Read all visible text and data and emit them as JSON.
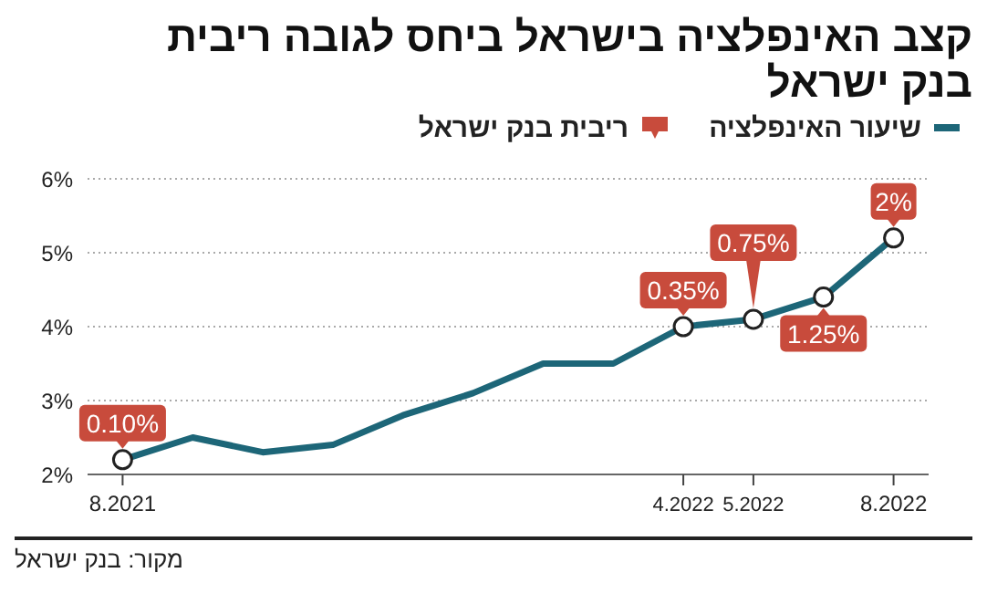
{
  "chart_data": {
    "type": "line",
    "title": "קצב האינפלציה בישראל ביחס לגובה ריבית בנק ישראל",
    "categories": [
      "8.2021",
      null,
      null,
      null,
      null,
      null,
      null,
      null,
      "4.2022",
      "5.2022",
      null,
      "8.2022"
    ],
    "series": [
      {
        "name": "שיעור האינפלציה",
        "color": "#1d6678",
        "values": [
          2.2,
          2.5,
          2.3,
          2.4,
          2.8,
          3.1,
          3.5,
          3.5,
          4.0,
          4.1,
          4.4,
          5.2
        ]
      }
    ],
    "ylim": [
      2,
      6
    ],
    "yticks": [
      {
        "value": 2,
        "label": "2%"
      },
      {
        "value": 3,
        "label": "3%"
      },
      {
        "value": 4,
        "label": "4%"
      },
      {
        "value": 5,
        "label": "5%"
      },
      {
        "value": 6,
        "label": "6%"
      }
    ],
    "grid": "y",
    "legend": "top right",
    "annotations": [
      "ריבית בנק ישראל",
      "מקור: בנק ישראל",
      {
        "text": "0.10%",
        "x": "8.2021",
        "y": 2.2
      },
      {
        "text": "0.35%",
        "x": "4.2022",
        "y": 4.0
      },
      {
        "text": "0.75%",
        "x": "5.2022",
        "y": 4.1
      },
      {
        "text": "1.25%",
        "y": 4.4
      },
      {
        "text": "2%",
        "x": "8.2022",
        "y": 5.2
      }
    ]
  }
}
